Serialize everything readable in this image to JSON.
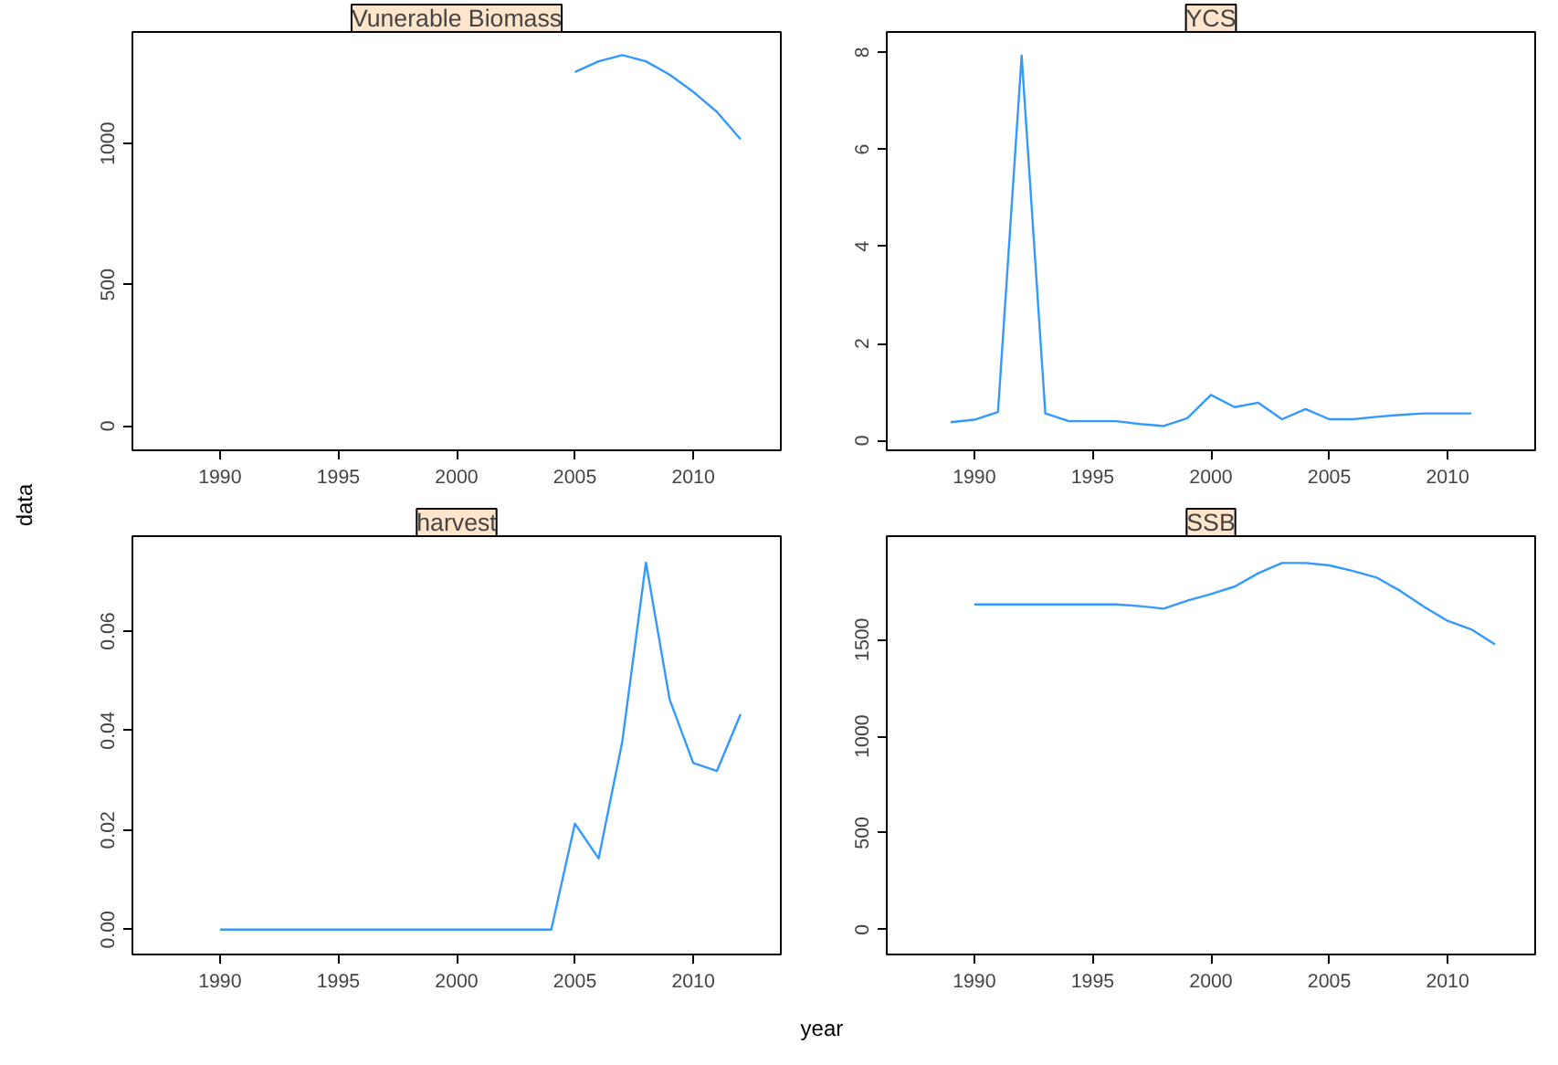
{
  "chart_data": [
    {
      "type": "line",
      "title": "Vunerable Biomass",
      "ylabel": "data",
      "color": "#3399ff",
      "grid": false,
      "x": [
        2005,
        2006,
        2007,
        2008,
        2009,
        2010,
        2011,
        2012
      ],
      "values": [
        1253,
        1291,
        1313,
        1291,
        1244,
        1183,
        1112,
        1015
      ],
      "xlim": [
        1986.3,
        2013.7
      ],
      "xticks": [
        1990,
        1995,
        2000,
        2005,
        2010
      ],
      "ylim": [
        -86,
        1395
      ],
      "yticks": [
        0,
        500,
        1000
      ]
    },
    {
      "type": "line",
      "title": "YCS",
      "color": "#3399ff",
      "grid": false,
      "x": [
        1989,
        1990,
        1991,
        1992,
        1993,
        1994,
        1995,
        1996,
        1997,
        1998,
        1999,
        2000,
        2001,
        2002,
        2003,
        2004,
        2005,
        2006,
        2007,
        2008,
        2009,
        2010,
        2011
      ],
      "values": [
        0.38,
        0.43,
        0.59,
        7.93,
        0.56,
        0.4,
        0.4,
        0.4,
        0.34,
        0.3,
        0.46,
        0.94,
        0.69,
        0.78,
        0.44,
        0.65,
        0.44,
        0.44,
        0.49,
        0.53,
        0.56,
        0.56,
        0.56
      ],
      "xlim": [
        1986.3,
        2013.7
      ],
      "xticks": [
        1990,
        1995,
        2000,
        2005,
        2010
      ],
      "ylim": [
        -0.2,
        8.42
      ],
      "yticks": [
        0,
        2,
        4,
        6,
        8
      ]
    },
    {
      "type": "line",
      "title": "harvest",
      "color": "#3399ff",
      "grid": false,
      "x": [
        1990,
        1991,
        1992,
        1993,
        1994,
        1995,
        1996,
        1997,
        1998,
        1999,
        2000,
        2001,
        2002,
        2003,
        2004,
        2005,
        2006,
        2007,
        2008,
        2009,
        2010,
        2011,
        2012
      ],
      "values": [
        0,
        0,
        0,
        0,
        0,
        0,
        0,
        0,
        0,
        0,
        0,
        0,
        0,
        0,
        0,
        0.0213,
        0.0143,
        0.0378,
        0.0738,
        0.0463,
        0.0335,
        0.0319,
        0.0433
      ],
      "xlim": [
        1986.3,
        2013.7
      ],
      "xticks": [
        1990,
        1995,
        2000,
        2005,
        2010
      ],
      "ylim": [
        -0.005,
        0.0791
      ],
      "yticks": [
        {
          "value": 0,
          "label": "0.00"
        },
        {
          "value": 0.02,
          "label": "0.02"
        },
        {
          "value": 0.04,
          "label": "0.04"
        },
        {
          "value": 0.06,
          "label": "0.06"
        }
      ]
    },
    {
      "type": "line",
      "title": "SSB",
      "xlabel": "year",
      "color": "#3399ff",
      "grid": false,
      "x": [
        1990,
        1991,
        1992,
        1993,
        1994,
        1995,
        1996,
        1997,
        1998,
        1999,
        2000,
        2001,
        2002,
        2003,
        2004,
        2005,
        2006,
        2007,
        2008,
        2009,
        2010,
        2011,
        2012
      ],
      "values": [
        1682,
        1682,
        1682,
        1682,
        1682,
        1682,
        1682,
        1673,
        1660,
        1701,
        1736,
        1774,
        1843,
        1896,
        1896,
        1884,
        1855,
        1821,
        1752,
        1670,
        1597,
        1553,
        1475
      ],
      "xlim": [
        1986.3,
        2013.7
      ],
      "xticks": [
        1990,
        1995,
        2000,
        2005,
        2010
      ],
      "ylim": [
        -129,
        2035
      ],
      "yticks": [
        0,
        500,
        1000,
        1500
      ]
    }
  ]
}
